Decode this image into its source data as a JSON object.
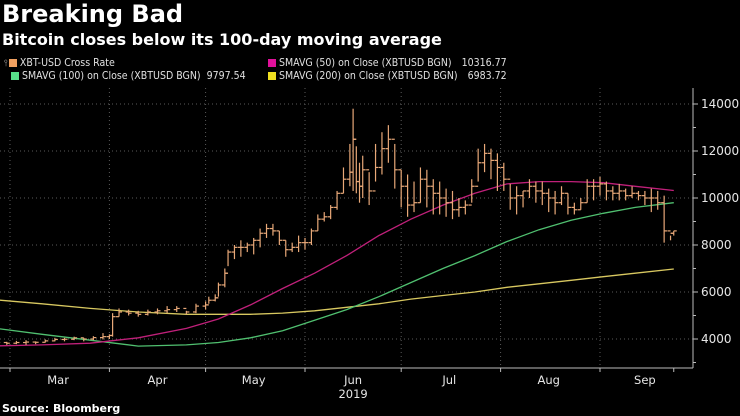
{
  "header": {
    "title": "Breaking Bad",
    "subtitle": "Bitcoin closes below its 100-day moving average"
  },
  "legend": [
    {
      "icon": "ohlc-bar-icon",
      "label": "XBT-USD Cross Rate",
      "value": "",
      "color": "#f0a060"
    },
    {
      "label": "SMAVG (50)  on Close (XBTUSD BGN)",
      "value": "10316.77",
      "color": "#e0109a"
    },
    {
      "label": "SMAVG (100)  on Close (XBTUSD BGN)",
      "value": "9797.54",
      "color": "#58e08a"
    },
    {
      "label": "SMAVG (200)  on Close (XBTUSD BGN)",
      "value": "6983.72",
      "color": "#f0e020"
    }
  ],
  "footer": {
    "source": "Source: Bloomberg"
  },
  "chart_data": {
    "type": "line",
    "title": "Breaking Bad",
    "subtitle": "Bitcoin closes below its 100-day moving average",
    "xlabel": "2019",
    "ylabel": "",
    "ylim": [
      3000,
      14500
    ],
    "grid": true,
    "legend_position": "top",
    "y_ticks": [
      4000,
      6000,
      8000,
      10000,
      12000,
      14000
    ],
    "y_tick_labels": [
      "4000",
      "6000",
      "8000",
      "10000",
      "12000",
      "14000"
    ],
    "x_tick_labels": [
      "Mar",
      "Apr",
      "May",
      "Jun",
      "Jul",
      "Aug",
      "Sep"
    ],
    "x_year_label": "2019",
    "x_day_range": [
      -7,
      208
    ],
    "x_tick_days": [
      0,
      31,
      61,
      92,
      122,
      153,
      184
    ],
    "series": [
      {
        "name": "XBT-USD Cross Rate",
        "kind": "ohlc",
        "color": "#e8a878",
        "days": [
          -7,
          -4,
          -1,
          2,
          5,
          8,
          11,
          14,
          17,
          20,
          23,
          26,
          29,
          31,
          32,
          34,
          37,
          40,
          43,
          46,
          49,
          52,
          55,
          58,
          61,
          62,
          64,
          65,
          67,
          68,
          70,
          72,
          74,
          76,
          78,
          80,
          82,
          84,
          86,
          88,
          90,
          92,
          94,
          96,
          98,
          100,
          102,
          104,
          106,
          107,
          108,
          109,
          110,
          112,
          114,
          116,
          118,
          120,
          122,
          124,
          126,
          128,
          130,
          132,
          134,
          136,
          138,
          140,
          142,
          144,
          146,
          148,
          150,
          152,
          154,
          156,
          158,
          160,
          162,
          164,
          166,
          168,
          170,
          172,
          174,
          176,
          178,
          180,
          182,
          184,
          186,
          188,
          190,
          192,
          194,
          196,
          198,
          200,
          202,
          204,
          206,
          207
        ],
        "high": [
          3900,
          3950,
          3880,
          3920,
          3950,
          3900,
          3980,
          4050,
          4050,
          4100,
          4050,
          4120,
          4250,
          4200,
          5100,
          5300,
          5250,
          5200,
          5250,
          5300,
          5400,
          5400,
          5200,
          5500,
          5600,
          5800,
          5900,
          6400,
          7000,
          7800,
          8000,
          8200,
          8100,
          8300,
          8700,
          8900,
          8900,
          8600,
          8200,
          8100,
          8400,
          8300,
          8700,
          9300,
          9400,
          9700,
          10300,
          11300,
          12300,
          13800,
          12200,
          11500,
          11800,
          11100,
          12300,
          12800,
          13100,
          12300,
          11200,
          11000,
          10700,
          11300,
          11200,
          10800,
          10700,
          10400,
          10300,
          10000,
          9900,
          10800,
          12100,
          12300,
          12100,
          11900,
          11500,
          10600,
          10500,
          10300,
          10800,
          10700,
          10700,
          10400,
          10300,
          10500,
          10200,
          9800,
          10000,
          10800,
          10800,
          10900,
          10700,
          10500,
          10600,
          10400,
          10500,
          10300,
          10300,
          10400,
          10300,
          10100,
          8400,
          8600
        ],
        "low": [
          3650,
          3700,
          3750,
          3780,
          3750,
          3780,
          3850,
          3900,
          3900,
          3950,
          3900,
          3950,
          3980,
          4000,
          4100,
          4950,
          5000,
          4950,
          5000,
          5050,
          5100,
          5150,
          5050,
          5100,
          5250,
          5500,
          5600,
          5800,
          6200,
          7100,
          7400,
          7500,
          7700,
          7600,
          7900,
          8300,
          8400,
          8000,
          7500,
          7700,
          7700,
          7800,
          8000,
          8600,
          9000,
          9100,
          9500,
          10200,
          10500,
          10300,
          10200,
          9800,
          10000,
          9700,
          10700,
          11000,
          11500,
          10400,
          9600,
          9200,
          9400,
          9800,
          9600,
          9300,
          9300,
          9200,
          9100,
          9200,
          9300,
          9800,
          10700,
          11100,
          10800,
          10300,
          10300,
          9500,
          9300,
          9600,
          10000,
          9800,
          9700,
          9400,
          9300,
          9700,
          9300,
          9300,
          9500,
          9800,
          9900,
          10100,
          9900,
          9900,
          9900,
          9900,
          10000,
          9900,
          9700,
          9400,
          9500,
          8100,
          8200,
          8400
        ],
        "close": [
          3800,
          3850,
          3820,
          3850,
          3870,
          3860,
          3920,
          3980,
          3990,
          4050,
          4000,
          4060,
          4100,
          4150,
          4950,
          5150,
          5100,
          5050,
          5150,
          5200,
          5250,
          5300,
          5150,
          5400,
          5450,
          5650,
          5750,
          6300,
          6800,
          7700,
          7900,
          7900,
          8000,
          8200,
          8500,
          8700,
          8600,
          8200,
          7800,
          7900,
          8100,
          8100,
          8600,
          9100,
          9200,
          9600,
          10200,
          10800,
          11100,
          12500,
          10700,
          10500,
          11200,
          10300,
          11300,
          12100,
          12500,
          11200,
          10500,
          9700,
          9800,
          10800,
          10500,
          10200,
          10000,
          9800,
          9500,
          9600,
          9700,
          10500,
          11500,
          11900,
          11600,
          11300,
          10800,
          10000,
          10100,
          10300,
          10500,
          10300,
          10200,
          10000,
          9800,
          10200,
          9600,
          9500,
          9800,
          10500,
          10500,
          10600,
          10300,
          10200,
          10300,
          10100,
          10200,
          10100,
          10000,
          10000,
          9800,
          8600,
          8500,
          8600
        ]
      },
      {
        "name": "SMAVG (50) on Close (XBTUSD BGN)",
        "color": "#c0207a",
        "days": [
          -7,
          10,
          25,
          40,
          55,
          65,
          75,
          85,
          95,
          105,
          115,
          125,
          135,
          145,
          155,
          165,
          175,
          185,
          195,
          207
        ],
        "values": [
          3700,
          3750,
          3820,
          4050,
          4450,
          4850,
          5450,
          6150,
          6800,
          7550,
          8400,
          9100,
          9700,
          10200,
          10600,
          10700,
          10700,
          10650,
          10500,
          10320
        ]
      },
      {
        "name": "SMAVG (100) on Close (XBTUSD BGN)",
        "color": "#50c070",
        "days": [
          -7,
          10,
          25,
          40,
          55,
          65,
          75,
          85,
          95,
          105,
          115,
          125,
          135,
          145,
          155,
          165,
          175,
          185,
          195,
          207
        ],
        "values": [
          4500,
          4200,
          3950,
          3700,
          3750,
          3850,
          4050,
          4350,
          4800,
          5250,
          5800,
          6400,
          7000,
          7550,
          8150,
          8650,
          9050,
          9350,
          9600,
          9800
        ]
      },
      {
        "name": "SMAVG (200) on Close (XBTUSD BGN)",
        "color": "#d8c860",
        "days": [
          -7,
          10,
          25,
          40,
          55,
          65,
          75,
          85,
          95,
          105,
          115,
          125,
          135,
          145,
          155,
          165,
          175,
          185,
          195,
          207
        ],
        "values": [
          5700,
          5500,
          5300,
          5150,
          5050,
          5050,
          5050,
          5100,
          5200,
          5350,
          5500,
          5700,
          5850,
          6000,
          6200,
          6350,
          6500,
          6650,
          6800,
          6980
        ]
      }
    ]
  }
}
